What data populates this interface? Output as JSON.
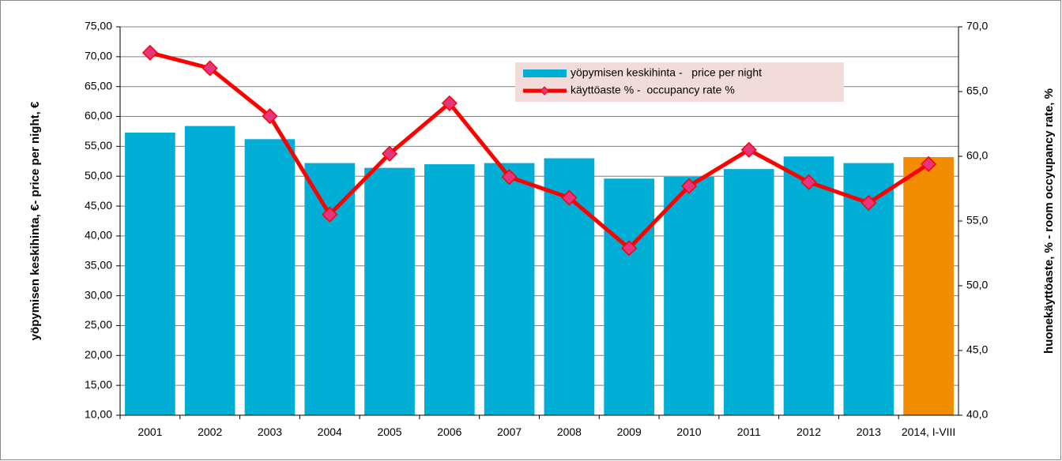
{
  "chart_data": {
    "type": "bar",
    "categories": [
      "2001",
      "2002",
      "2003",
      "2004",
      "2005",
      "2006",
      "2007",
      "2008",
      "2009",
      "2010",
      "2011",
      "2012",
      "2013",
      "2014, I-VIII"
    ],
    "series": [
      {
        "name": "yöpymisen keskihinta -   price per night",
        "type": "bar",
        "colors": [
          "#00aed6",
          "#00aed6",
          "#00aed6",
          "#00aed6",
          "#00aed6",
          "#00aed6",
          "#00aed6",
          "#00aed6",
          "#00aed6",
          "#00aed6",
          "#00aed6",
          "#00aed6",
          "#00aed6",
          "#f28c00"
        ],
        "values": [
          57.3,
          58.4,
          56.2,
          52.2,
          51.4,
          52.0,
          52.2,
          53.0,
          49.6,
          49.9,
          51.2,
          53.3,
          52.2,
          53.2
        ]
      },
      {
        "name": "käyttöaste % -  occupancy rate %",
        "type": "line",
        "axis": "y2",
        "color": "#ff0000",
        "marker_color": "#e6347f",
        "values": [
          68.0,
          66.8,
          63.1,
          55.5,
          60.2,
          64.1,
          58.4,
          56.8,
          52.9,
          57.7,
          60.5,
          58.0,
          56.4,
          59.4
        ]
      }
    ],
    "y_label": "yöpymisen keskihinta, €- price per night, €",
    "y2_label": "huonekäyttöaste, % - room occyupancy rate, %",
    "ylim": [
      10,
      75
    ],
    "yticks": [
      {
        "value": 10,
        "label": "10,00"
      },
      {
        "value": 15,
        "label": "15,00"
      },
      {
        "value": 20,
        "label": "20,00"
      },
      {
        "value": 25,
        "label": "25,00"
      },
      {
        "value": 30,
        "label": "30,00"
      },
      {
        "value": 35,
        "label": "35,00"
      },
      {
        "value": 40,
        "label": "40,00"
      },
      {
        "value": 45,
        "label": "45,00"
      },
      {
        "value": 50,
        "label": "50,00"
      },
      {
        "value": 55,
        "label": "55,00"
      },
      {
        "value": 60,
        "label": "60,00"
      },
      {
        "value": 65,
        "label": "65,00"
      },
      {
        "value": 70,
        "label": "70,00"
      },
      {
        "value": 75,
        "label": "75,00"
      }
    ],
    "y2lim": [
      40,
      70
    ],
    "y2ticks": [
      {
        "value": 40,
        "label": "40,0"
      },
      {
        "value": 45,
        "label": "45,0"
      },
      {
        "value": 50,
        "label": "50,0"
      },
      {
        "value": 55,
        "label": "55,0"
      },
      {
        "value": 60,
        "label": "60,0"
      },
      {
        "value": 65,
        "label": "65,0"
      },
      {
        "value": 70,
        "label": "70,0"
      }
    ],
    "grid": true
  }
}
